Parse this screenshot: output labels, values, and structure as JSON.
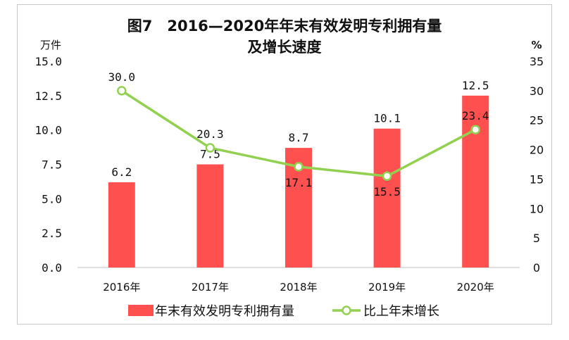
{
  "title_line1": "图7　2016—2020年年末有效发明专利拥有量",
  "title_line2": "及增长速度",
  "chart_data": {
    "type": "bar",
    "categories": [
      "2016年",
      "2017年",
      "2018年",
      "2019年",
      "2020年"
    ],
    "series": [
      {
        "name": "年末有效发明专利拥有量",
        "type": "bar",
        "axis": "left",
        "color": "#ff5050",
        "values": [
          6.2,
          7.5,
          8.7,
          10.1,
          12.5
        ],
        "labels": [
          "6.2",
          "7.5",
          "8.7",
          "10.1",
          "12.5"
        ]
      },
      {
        "name": "比上年末增长",
        "type": "line",
        "axis": "right",
        "color": "#92d050",
        "values": [
          30.0,
          20.3,
          17.1,
          15.5,
          23.4
        ],
        "labels": [
          "30.0",
          "20.3",
          "17.1",
          "15.5",
          "23.4"
        ]
      }
    ],
    "y_left": {
      "unit": "万件",
      "min": 0,
      "max": 15,
      "ticks": [
        "0.0",
        "2.5",
        "5.0",
        "7.5",
        "10.0",
        "12.5",
        "15.0"
      ]
    },
    "y_right": {
      "unit": "%",
      "min": 0,
      "max": 35,
      "ticks": [
        "0",
        "5",
        "10",
        "15",
        "20",
        "25",
        "30",
        "35"
      ]
    },
    "grid": false,
    "legend_position": "bottom"
  }
}
